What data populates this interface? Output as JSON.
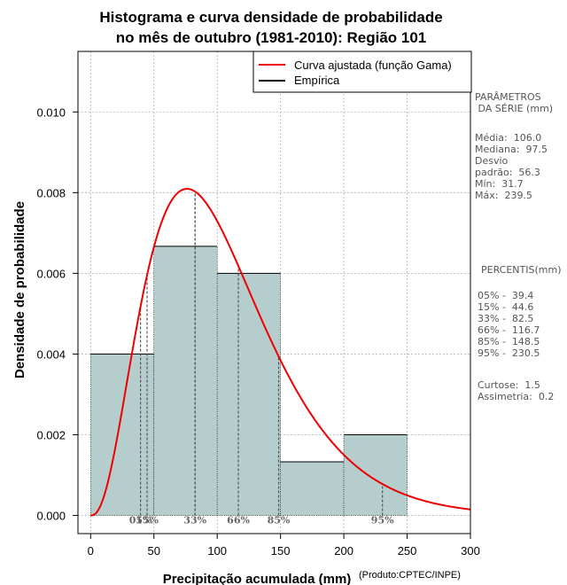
{
  "chart_data": {
    "type": "bar",
    "title": [
      "Histograma e curva densidade de probabilidade",
      "no mês de outubro (1981-2010): Região 101"
    ],
    "xlabel": "Precipitação acumulada (mm)",
    "ylabel": "Densidade de probabilidade",
    "credit": "(Produto:CPTEC/INPE)",
    "xlim": [
      -10,
      300
    ],
    "ylim": [
      -0.00045,
      0.0115
    ],
    "xticks": [
      0,
      50,
      100,
      150,
      200,
      250,
      300
    ],
    "yticks": [
      0.0,
      0.002,
      0.004,
      0.006,
      0.008,
      0.01
    ],
    "ytick_labels": [
      "0.000",
      "0.002",
      "0.004",
      "0.006",
      "0.008",
      "0.010"
    ],
    "grid": true,
    "bars": [
      {
        "x0": 0,
        "x1": 50,
        "density": 0.004
      },
      {
        "x0": 50,
        "x1": 100,
        "density": 0.00667
      },
      {
        "x0": 100,
        "x1": 150,
        "density": 0.006
      },
      {
        "x0": 150,
        "x1": 200,
        "density": 0.00133
      },
      {
        "x0": 200,
        "x1": 250,
        "density": 0.002
      }
    ],
    "bar_color": "#b5cecd",
    "curve": {
      "name": "Curva ajustada (função Gama)",
      "color": "#ee0000",
      "mean": 106.0,
      "std": 56.3
    },
    "legend": [
      {
        "label": "Curva ajustada (função Gama)",
        "color": "#ee0000"
      },
      {
        "label": "Empírica",
        "color": "#000000"
      }
    ],
    "mode_line": 82.5,
    "percentile_lines": [
      {
        "label": "05%",
        "value": 39.4
      },
      {
        "label": "15%",
        "value": 44.6
      },
      {
        "label": "33%",
        "value": 82.5
      },
      {
        "label": "66%",
        "value": 116.7
      },
      {
        "label": "85%",
        "value": 148.5
      },
      {
        "label": "95%",
        "value": 230.5
      }
    ],
    "percentile_markers": [
      {
        "label": "05%",
        "value": 39.4
      },
      {
        "label": "15%",
        "value": 44.6
      },
      {
        "label": "33%",
        "value": 82.5
      },
      {
        "label": "66%",
        "value": 116.7
      },
      {
        "label": "85%",
        "value": 148.5
      },
      {
        "label": "95%",
        "value": 230.5
      }
    ]
  },
  "side_panel": {
    "params_title": "PARÂMETROS\n DA SÉRIE (mm)",
    "params_body": "Média:  106.0\nMediana:  97.5\nDesvio\npadrão:  56.3\nMín:  31.7\nMáx:  239.5",
    "pct_title": "PERCENTIS(mm)",
    "pct_body": "05% -  39.4\n15% -  44.6\n33% -  82.5\n66% -  116.7\n85% -  148.5\n95% -  230.5",
    "stats_body": "Curtose:  1.5\nAssimetria:  0.2"
  }
}
